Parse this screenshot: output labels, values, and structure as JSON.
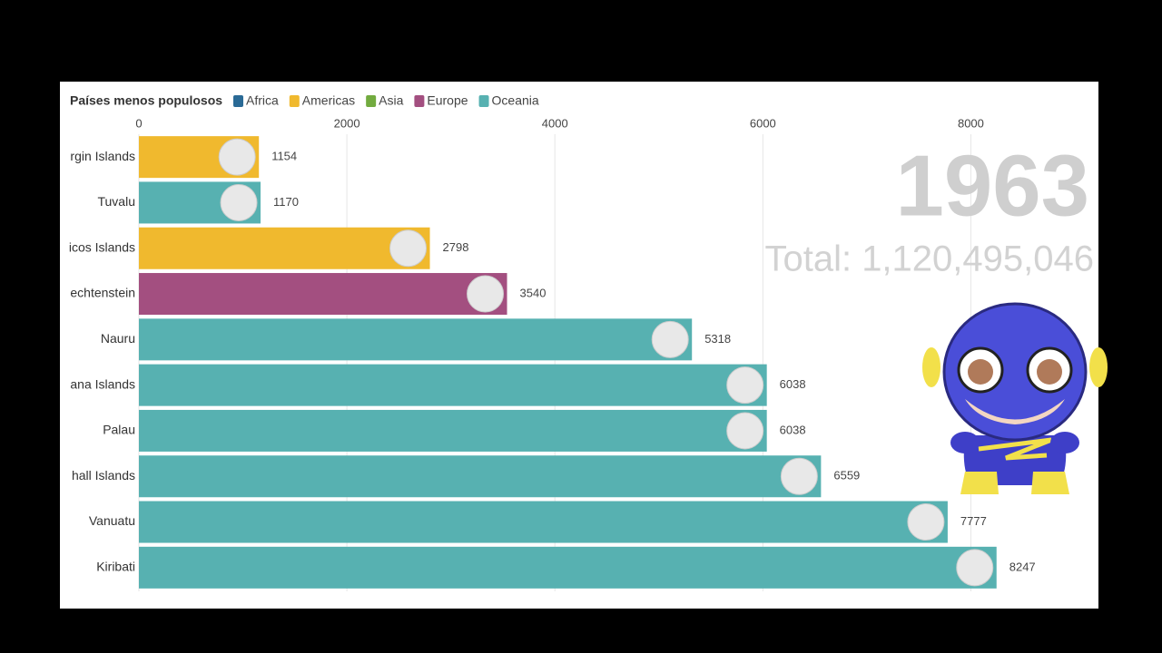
{
  "chart_data": {
    "type": "bar",
    "orientation": "horizontal",
    "title": "Países menos populosos",
    "legend": [
      {
        "name": "Africa",
        "color": "#2a6a96"
      },
      {
        "name": "Americas",
        "color": "#f0b92e"
      },
      {
        "name": "Asia",
        "color": "#72ab3f"
      },
      {
        "name": "Europe",
        "color": "#a34f80"
      },
      {
        "name": "Oceania",
        "color": "#57b1b1"
      }
    ],
    "categories": [
      "rgin Islands",
      "Tuvalu",
      "icos Islands",
      "echtenstein",
      "Nauru",
      "ana Islands",
      "Palau",
      "hall Islands",
      "Vanuatu",
      "Kiribati"
    ],
    "groups": [
      "Americas",
      "Oceania",
      "Americas",
      "Europe",
      "Oceania",
      "Oceania",
      "Oceania",
      "Oceania",
      "Oceania",
      "Oceania"
    ],
    "values": [
      1154,
      1170,
      2798,
      3540,
      5318,
      6038,
      6038,
      6559,
      7777,
      8247
    ],
    "xlim": [
      0,
      9000
    ],
    "xticks": [
      0,
      2000,
      4000,
      6000,
      8000
    ],
    "grid": true,
    "year": "1963",
    "total": "Total: 1,120,495,046"
  }
}
